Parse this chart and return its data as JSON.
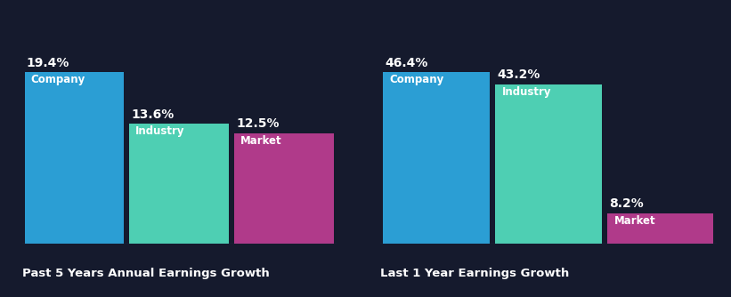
{
  "background_color": "#151a2d",
  "chart1": {
    "title": "Past 5 Years Annual Earnings Growth",
    "categories": [
      "Company",
      "Industry",
      "Market"
    ],
    "values": [
      19.4,
      13.6,
      12.5
    ],
    "colors": [
      "#2b9ed4",
      "#4ecfb3",
      "#b03a8a"
    ]
  },
  "chart2": {
    "title": "Last 1 Year Earnings Growth",
    "categories": [
      "Company",
      "Industry",
      "Market"
    ],
    "values": [
      46.4,
      43.2,
      8.2
    ],
    "colors": [
      "#2b9ed4",
      "#4ecfb3",
      "#b03a8a"
    ]
  },
  "label_fontsize": 8.5,
  "title_fontsize": 9.5,
  "value_fontsize": 10,
  "text_color": "#ffffff",
  "title_color": "#ffffff",
  "bar_width": 0.95,
  "cat_label_color_1": "#ffffff",
  "cat_label_color_2": "#1a2a3a"
}
